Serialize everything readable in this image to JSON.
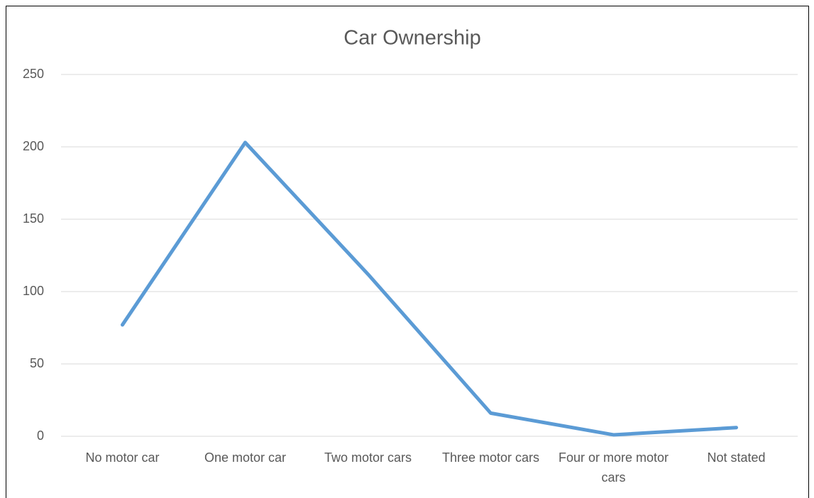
{
  "chart_data": {
    "type": "line",
    "title": "Car Ownership",
    "categories": [
      "No motor car",
      "One motor car",
      "Two motor cars",
      "Three motor cars",
      "Four or more motor cars",
      "Not stated"
    ],
    "series": [
      {
        "color": "#5b9bd5",
        "values": [
          77,
          203,
          112,
          16,
          1,
          6
        ]
      }
    ],
    "ylim": [
      0,
      250
    ],
    "yticks": [
      0,
      50,
      100,
      150,
      200,
      250
    ],
    "grid": true
  }
}
